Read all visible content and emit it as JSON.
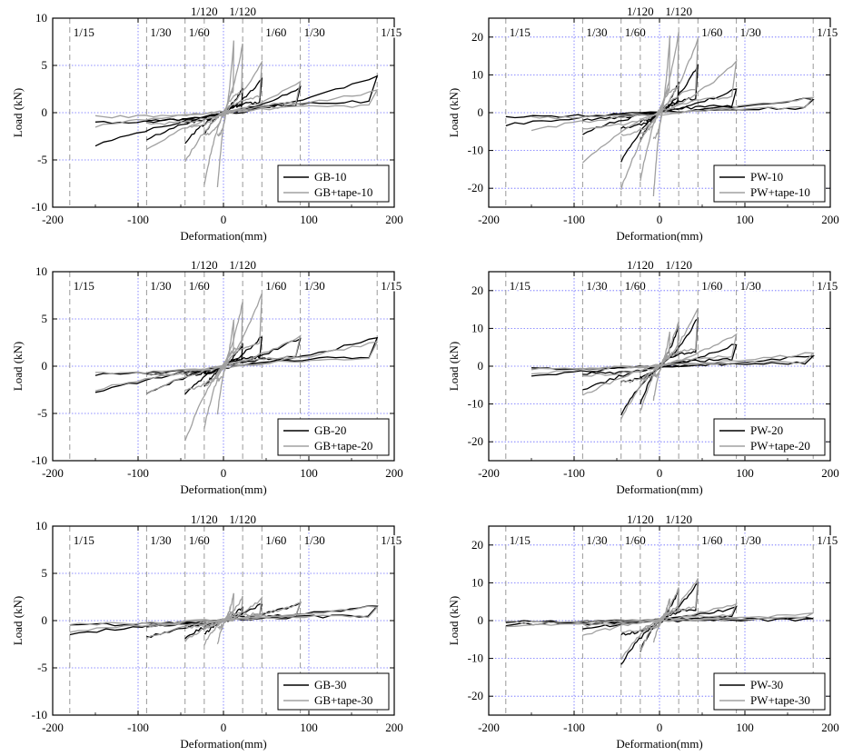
{
  "chart_data": [
    {
      "type": "line",
      "xlabel": "Deformation(mm)",
      "ylabel": "Load (kN)",
      "xlim": [
        -200,
        200
      ],
      "ylim": [
        -10,
        10
      ],
      "xticks": [
        -200,
        -100,
        0,
        100,
        200
      ],
      "yticks": [
        -10,
        -5,
        0,
        5,
        10
      ],
      "grid": true,
      "legend_position": "bottom-right",
      "drift_lines": [
        -180,
        -90,
        -45,
        -22.5,
        22.5,
        45,
        90,
        180
      ],
      "drift_labels_top": [
        {
          "x": -22.5,
          "text": "1/120"
        },
        {
          "x": 22.5,
          "text": "1/120"
        }
      ],
      "drift_labels_inner": [
        {
          "x": -180,
          "text": "1/15"
        },
        {
          "x": -90,
          "text": "1/30"
        },
        {
          "x": -45,
          "text": "1/60"
        },
        {
          "x": 45,
          "text": "1/60"
        },
        {
          "x": 90,
          "text": "1/30"
        },
        {
          "x": 180,
          "text": "1/15"
        }
      ],
      "series": [
        {
          "name": "GB-10",
          "color": "#000000",
          "cycles": [
            [
              -22.5,
              -2.2,
              22.5,
              2.5
            ],
            [
              -45,
              -3.2,
              45,
              3.6
            ],
            [
              -90,
              -2.9,
              90,
              2.6
            ],
            [
              -150,
              -3.5,
              180,
              3.9
            ]
          ]
        },
        {
          "name": "GB+tape-10",
          "color": "#a0a0a0",
          "cycles": [
            [
              -7,
              -8.0,
              12,
              7.5
            ],
            [
              -22.5,
              -7.6,
              22.5,
              7.2
            ],
            [
              -45,
              -5.3,
              45,
              5.5
            ],
            [
              -90,
              -4.0,
              90,
              3.3
            ],
            [
              -150,
              -1.5,
              180,
              2.3
            ]
          ]
        }
      ]
    },
    {
      "type": "line",
      "xlabel": "Deformation(mm)",
      "ylabel": "Load (kN)",
      "xlim": [
        -200,
        200
      ],
      "ylim": [
        -25,
        25
      ],
      "xticks": [
        -200,
        -100,
        0,
        100,
        200
      ],
      "yticks": [
        -20,
        -10,
        0,
        10,
        20
      ],
      "grid": true,
      "legend_position": "bottom-right",
      "drift_lines": [
        -180,
        -90,
        -45,
        -22.5,
        22.5,
        45,
        90,
        180
      ],
      "drift_labels_top": [
        {
          "x": -22.5,
          "text": "1/120"
        },
        {
          "x": 22.5,
          "text": "1/120"
        }
      ],
      "drift_labels_inner": [
        {
          "x": -180,
          "text": "1/15"
        },
        {
          "x": -90,
          "text": "1/30"
        },
        {
          "x": -45,
          "text": "1/60"
        },
        {
          "x": 45,
          "text": "1/60"
        },
        {
          "x": 90,
          "text": "1/30"
        },
        {
          "x": 180,
          "text": "1/15"
        }
      ],
      "series": [
        {
          "name": "PW-10",
          "color": "#000000",
          "cycles": [
            [
              -22.5,
              -7.5,
              22.5,
              8.0
            ],
            [
              -45,
              -13.0,
              45,
              12.5
            ],
            [
              -90,
              -5.5,
              90,
              6.2
            ],
            [
              -180,
              -3.3,
              180,
              3.8
            ]
          ]
        },
        {
          "name": "PW+tape-10",
          "color": "#a0a0a0",
          "cycles": [
            [
              -7,
              -22.0,
              12,
              20.0
            ],
            [
              -22.5,
              -18.0,
              22.5,
              21.0
            ],
            [
              -45,
              -20.0,
              45,
              19.5
            ],
            [
              -90,
              -13.5,
              90,
              13.5
            ],
            [
              -150,
              -4.5,
              180,
              4.2
            ]
          ]
        }
      ]
    },
    {
      "type": "line",
      "xlabel": "Deformation(mm)",
      "ylabel": "Load (kN)",
      "xlim": [
        -200,
        200
      ],
      "ylim": [
        -10,
        10
      ],
      "xticks": [
        -200,
        -100,
        0,
        100,
        200
      ],
      "yticks": [
        -10,
        -5,
        0,
        5,
        10
      ],
      "grid": true,
      "legend_position": "bottom-right",
      "drift_lines": [
        -180,
        -90,
        -45,
        -22.5,
        22.5,
        45,
        90,
        180
      ],
      "drift_labels_top": [
        {
          "x": -22.5,
          "text": "1/120"
        },
        {
          "x": 22.5,
          "text": "1/120"
        }
      ],
      "drift_labels_inner": [
        {
          "x": -180,
          "text": "1/15"
        },
        {
          "x": -90,
          "text": "1/30"
        },
        {
          "x": -45,
          "text": "1/60"
        },
        {
          "x": 45,
          "text": "1/60"
        },
        {
          "x": 90,
          "text": "1/30"
        },
        {
          "x": 180,
          "text": "1/15"
        }
      ],
      "series": [
        {
          "name": "GB-20",
          "color": "#000000",
          "cycles": [
            [
              -22.5,
              -2.3,
              22.5,
              2.3
            ],
            [
              -45,
              -3.0,
              45,
              3.2
            ],
            [
              -90,
              -3.0,
              90,
              3.0
            ],
            [
              -150,
              -2.8,
              180,
              3.0
            ]
          ]
        },
        {
          "name": "GB+tape-20",
          "color": "#a0a0a0",
          "cycles": [
            [
              -7,
              -5.0,
              12,
              5.0
            ],
            [
              -22.5,
              -6.5,
              22.5,
              6.8
            ],
            [
              -45,
              -8.0,
              45,
              7.8
            ],
            [
              -90,
              -3.0,
              90,
              3.2
            ],
            [
              -150,
              -2.5,
              180,
              2.6
            ]
          ]
        }
      ]
    },
    {
      "type": "line",
      "xlabel": "Deformation(mm)",
      "ylabel": "Load (kN)",
      "xlim": [
        -200,
        200
      ],
      "ylim": [
        -25,
        25
      ],
      "xticks": [
        -200,
        -100,
        0,
        100,
        200
      ],
      "yticks": [
        -20,
        -10,
        0,
        10,
        20
      ],
      "grid": true,
      "legend_position": "bottom-right",
      "drift_lines": [
        -180,
        -90,
        -45,
        -22.5,
        22.5,
        45,
        90,
        180
      ],
      "drift_labels_top": [
        {
          "x": -22.5,
          "text": "1/120"
        },
        {
          "x": 22.5,
          "text": "1/120"
        }
      ],
      "drift_labels_inner": [
        {
          "x": -180,
          "text": "1/15"
        },
        {
          "x": -90,
          "text": "1/30"
        },
        {
          "x": -45,
          "text": "1/60"
        },
        {
          "x": 45,
          "text": "1/60"
        },
        {
          "x": 90,
          "text": "1/30"
        },
        {
          "x": 180,
          "text": "1/15"
        }
      ],
      "series": [
        {
          "name": "PW-20",
          "color": "#000000",
          "cycles": [
            [
              -22.5,
              -10.0,
              22.5,
              10.5
            ],
            [
              -45,
              -13.0,
              45,
              12.8
            ],
            [
              -90,
              -6.5,
              90,
              6.0
            ],
            [
              -150,
              -2.5,
              180,
              2.8
            ]
          ]
        },
        {
          "name": "PW+tape-20",
          "color": "#a0a0a0",
          "cycles": [
            [
              -7,
              -9.0,
              12,
              9.0
            ],
            [
              -22.5,
              -12.0,
              22.5,
              12.0
            ],
            [
              -45,
              -14.0,
              45,
              15.0
            ],
            [
              -90,
              -8.0,
              90,
              8.5
            ],
            [
              -150,
              -2.0,
              180,
              3.5
            ]
          ]
        }
      ]
    },
    {
      "type": "line",
      "xlabel": "Deformation(mm)",
      "ylabel": "Load (kN)",
      "xlim": [
        -200,
        200
      ],
      "ylim": [
        -10,
        10
      ],
      "xticks": [
        -200,
        -100,
        0,
        100,
        200
      ],
      "yticks": [
        -10,
        -5,
        0,
        5,
        10
      ],
      "grid": true,
      "legend_position": "bottom-right",
      "drift_lines": [
        -180,
        -90,
        -45,
        -22.5,
        22.5,
        45,
        90,
        180
      ],
      "drift_labels_top": [
        {
          "x": -22.5,
          "text": "1/120"
        },
        {
          "x": 22.5,
          "text": "1/120"
        }
      ],
      "drift_labels_inner": [
        {
          "x": -180,
          "text": "1/15"
        },
        {
          "x": -90,
          "text": "1/30"
        },
        {
          "x": -45,
          "text": "1/60"
        },
        {
          "x": 45,
          "text": "1/60"
        },
        {
          "x": 90,
          "text": "1/30"
        },
        {
          "x": 180,
          "text": "1/15"
        }
      ],
      "series": [
        {
          "name": "GB-30",
          "color": "#000000",
          "cycles": [
            [
              -22.5,
              -1.5,
              22.5,
              1.5
            ],
            [
              -45,
              -1.8,
              45,
              1.8
            ],
            [
              -90,
              -1.8,
              90,
              1.8
            ],
            [
              -180,
              -1.5,
              180,
              1.6
            ]
          ]
        },
        {
          "name": "GB+tape-30",
          "color": "#a0a0a0",
          "cycles": [
            [
              -7,
              -2.5,
              12,
              2.8
            ],
            [
              -22.5,
              -2.5,
              22.5,
              2.5
            ],
            [
              -45,
              -2.2,
              45,
              2.3
            ],
            [
              -90,
              -1.8,
              90,
              1.8
            ],
            [
              -180,
              -1.2,
              180,
              1.5
            ]
          ]
        }
      ]
    },
    {
      "type": "line",
      "xlabel": "Deformation(mm)",
      "ylabel": "Load (kN)",
      "xlim": [
        -200,
        200
      ],
      "ylim": [
        -25,
        25
      ],
      "xticks": [
        -200,
        -100,
        0,
        100,
        200
      ],
      "yticks": [
        -20,
        -10,
        0,
        10,
        20
      ],
      "grid": true,
      "legend_position": "bottom-right",
      "drift_lines": [
        -180,
        -90,
        -45,
        -22.5,
        22.5,
        45,
        90,
        180
      ],
      "drift_labels_top": [
        {
          "x": -22.5,
          "text": "1/120"
        },
        {
          "x": 22.5,
          "text": "1/120"
        }
      ],
      "drift_labels_inner": [
        {
          "x": -180,
          "text": "1/15"
        },
        {
          "x": -90,
          "text": "1/30"
        },
        {
          "x": -45,
          "text": "1/60"
        },
        {
          "x": 45,
          "text": "1/60"
        },
        {
          "x": 90,
          "text": "1/30"
        },
        {
          "x": 180,
          "text": "1/15"
        }
      ],
      "series": [
        {
          "name": "PW-30",
          "color": "#000000",
          "cycles": [
            [
              -22.5,
              -8.0,
              22.5,
              8.0
            ],
            [
              -45,
              -11.5,
              45,
              10.0
            ],
            [
              -90,
              -2.5,
              90,
              3.5
            ],
            [
              -180,
              -1.0,
              180,
              0.8
            ]
          ]
        },
        {
          "name": "PW+tape-30",
          "color": "#a0a0a0",
          "cycles": [
            [
              -7,
              -6.0,
              12,
              6.0
            ],
            [
              -22.5,
              -8.0,
              22.5,
              8.5
            ],
            [
              -45,
              -10.0,
              45,
              11.0
            ],
            [
              -90,
              -4.0,
              90,
              4.5
            ],
            [
              -180,
              -1.5,
              180,
              1.8
            ]
          ]
        }
      ]
    }
  ]
}
